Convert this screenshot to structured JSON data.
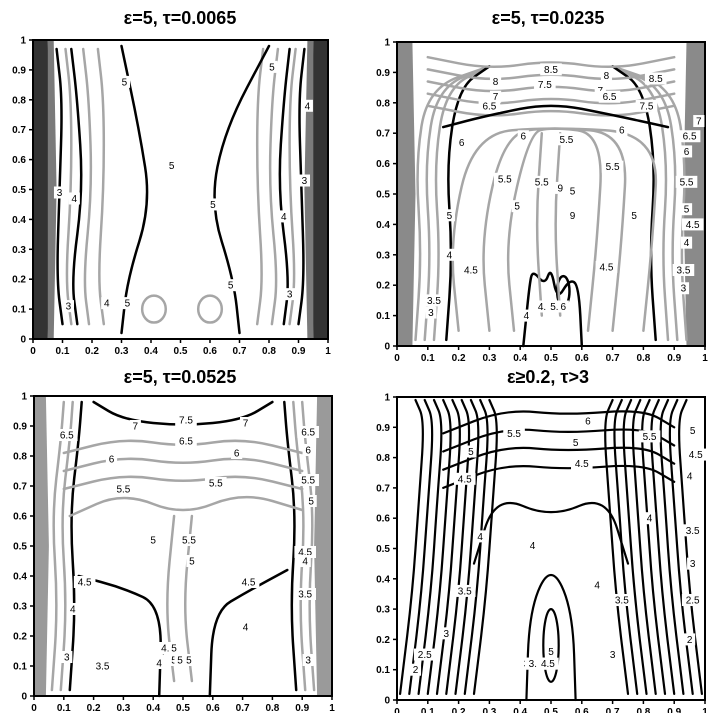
{
  "chart_data": [
    {
      "type": "contour",
      "title": "ε=5, τ=0.0065",
      "xlim": [
        0,
        1
      ],
      "ylim": [
        0,
        1
      ],
      "xticks": [
        "0",
        "0.1",
        "0.2",
        "0.3",
        "0.4",
        "0.5",
        "0.6",
        "0.7",
        "0.8",
        "0.9",
        "1"
      ],
      "yticks": [
        "0",
        "0.1",
        "0.2",
        "0.3",
        "0.4",
        "0.5",
        "0.6",
        "0.7",
        "0.8",
        "0.9",
        "1"
      ],
      "contour_labels": [
        {
          "text": "3",
          "x": 0.09,
          "y": 0.49
        },
        {
          "text": "4",
          "x": 0.14,
          "y": 0.47
        },
        {
          "text": "3",
          "x": 0.12,
          "y": 0.11
        },
        {
          "text": "4",
          "x": 0.25,
          "y": 0.12
        },
        {
          "text": "5",
          "x": 0.32,
          "y": 0.12
        },
        {
          "text": "5",
          "x": 0.31,
          "y": 0.86
        },
        {
          "text": "5",
          "x": 0.47,
          "y": 0.58
        },
        {
          "text": "5",
          "x": 0.61,
          "y": 0.45
        },
        {
          "text": "5",
          "x": 0.67,
          "y": 0.18
        },
        {
          "text": "5",
          "x": 0.81,
          "y": 0.91
        },
        {
          "text": "4",
          "x": 0.85,
          "y": 0.41
        },
        {
          "text": "3",
          "x": 0.87,
          "y": 0.15
        },
        {
          "text": "3",
          "x": 0.92,
          "y": 0.53
        },
        {
          "text": "4",
          "x": 0.93,
          "y": 0.78
        }
      ]
    },
    {
      "type": "contour",
      "title": "ε=5, τ=0.0235",
      "xlim": [
        0,
        1
      ],
      "ylim": [
        0,
        1
      ],
      "xticks": [
        "0",
        "0.1",
        "0.2",
        "0.3",
        "0.4",
        "0.5",
        "0.6",
        "0.7",
        "0.8",
        "0.9",
        "1"
      ],
      "yticks": [
        "0",
        "0.1",
        "0.2",
        "0.3",
        "0.4",
        "0.5",
        "0.6",
        "0.7",
        "0.8",
        "0.9",
        "1"
      ],
      "contour_labels": [
        {
          "text": "8.5",
          "x": 0.5,
          "y": 0.91
        },
        {
          "text": "8",
          "x": 0.32,
          "y": 0.87
        },
        {
          "text": "7.5",
          "x": 0.48,
          "y": 0.86
        },
        {
          "text": "8",
          "x": 0.68,
          "y": 0.89
        },
        {
          "text": "8.5",
          "x": 0.84,
          "y": 0.88
        },
        {
          "text": "7",
          "x": 0.32,
          "y": 0.82
        },
        {
          "text": "7",
          "x": 0.66,
          "y": 0.84
        },
        {
          "text": "6.5",
          "x": 0.3,
          "y": 0.79
        },
        {
          "text": "6.5",
          "x": 0.69,
          "y": 0.82
        },
        {
          "text": "7.5",
          "x": 0.81,
          "y": 0.79
        },
        {
          "text": "6",
          "x": 0.21,
          "y": 0.67
        },
        {
          "text": "6",
          "x": 0.41,
          "y": 0.69
        },
        {
          "text": "5.5",
          "x": 0.55,
          "y": 0.68
        },
        {
          "text": "6",
          "x": 0.73,
          "y": 0.71
        },
        {
          "text": "7",
          "x": 0.98,
          "y": 0.74
        },
        {
          "text": "6.5",
          "x": 0.95,
          "y": 0.69
        },
        {
          "text": "6",
          "x": 0.94,
          "y": 0.64
        },
        {
          "text": "5.5",
          "x": 0.94,
          "y": 0.54
        },
        {
          "text": "5.5",
          "x": 0.7,
          "y": 0.59
        },
        {
          "text": "5.5",
          "x": 0.35,
          "y": 0.55
        },
        {
          "text": "5.5",
          "x": 0.47,
          "y": 0.54
        },
        {
          "text": "9",
          "x": 0.53,
          "y": 0.52
        },
        {
          "text": "5",
          "x": 0.57,
          "y": 0.51
        },
        {
          "text": "5",
          "x": 0.39,
          "y": 0.46
        },
        {
          "text": "5",
          "x": 0.17,
          "y": 0.43
        },
        {
          "text": "9",
          "x": 0.57,
          "y": 0.43
        },
        {
          "text": "5",
          "x": 0.77,
          "y": 0.43
        },
        {
          "text": "5",
          "x": 0.94,
          "y": 0.45
        },
        {
          "text": "4.5",
          "x": 0.96,
          "y": 0.4
        },
        {
          "text": "4",
          "x": 0.94,
          "y": 0.34
        },
        {
          "text": "3.5",
          "x": 0.93,
          "y": 0.25
        },
        {
          "text": "3",
          "x": 0.93,
          "y": 0.19
        },
        {
          "text": "4.5",
          "x": 0.68,
          "y": 0.26
        },
        {
          "text": "4",
          "x": 0.17,
          "y": 0.3
        },
        {
          "text": "4.5",
          "x": 0.24,
          "y": 0.25
        },
        {
          "text": "3.5",
          "x": 0.12,
          "y": 0.15
        },
        {
          "text": "3",
          "x": 0.11,
          "y": 0.11
        },
        {
          "text": "4",
          "x": 0.42,
          "y": 0.1
        },
        {
          "text": "4.5",
          "x": 0.48,
          "y": 0.13
        },
        {
          "text": "5",
          "x": 0.5,
          "y": 0.13
        },
        {
          "text": "5.5",
          "x": 0.52,
          "y": 0.13
        },
        {
          "text": "6",
          "x": 0.54,
          "y": 0.13
        }
      ]
    },
    {
      "type": "contour",
      "title": "ε=5, τ=0.0525",
      "xlim": [
        0,
        1
      ],
      "ylim": [
        0,
        1
      ],
      "xticks": [
        "0",
        "0.1",
        "0.2",
        "0.3",
        "0.4",
        "0.5",
        "0.6",
        "0.7",
        "0.8",
        "0.9",
        "1"
      ],
      "yticks": [
        "0",
        "0.1",
        "0.2",
        "0.3",
        "0.4",
        "0.5",
        "0.6",
        "0.7",
        "0.8",
        "0.9",
        "1"
      ],
      "contour_labels": [
        {
          "text": "7.5",
          "x": 0.51,
          "y": 0.92
        },
        {
          "text": "7",
          "x": 0.34,
          "y": 0.9
        },
        {
          "text": "7",
          "x": 0.71,
          "y": 0.91
        },
        {
          "text": "6.5",
          "x": 0.11,
          "y": 0.87
        },
        {
          "text": "6.5",
          "x": 0.51,
          "y": 0.85
        },
        {
          "text": "6.5",
          "x": 0.92,
          "y": 0.88
        },
        {
          "text": "6",
          "x": 0.26,
          "y": 0.79
        },
        {
          "text": "6",
          "x": 0.68,
          "y": 0.81
        },
        {
          "text": "6",
          "x": 0.92,
          "y": 0.82
        },
        {
          "text": "5.5",
          "x": 0.3,
          "y": 0.69
        },
        {
          "text": "5.5",
          "x": 0.61,
          "y": 0.71
        },
        {
          "text": "5.5",
          "x": 0.92,
          "y": 0.72
        },
        {
          "text": "5",
          "x": 0.93,
          "y": 0.65
        },
        {
          "text": "5",
          "x": 0.4,
          "y": 0.52
        },
        {
          "text": "5.5",
          "x": 0.52,
          "y": 0.52
        },
        {
          "text": "5",
          "x": 0.53,
          "y": 0.45
        },
        {
          "text": "4.5",
          "x": 0.17,
          "y": 0.38
        },
        {
          "text": "4",
          "x": 0.13,
          "y": 0.29
        },
        {
          "text": "4.5",
          "x": 0.72,
          "y": 0.38
        },
        {
          "text": "4.5",
          "x": 0.91,
          "y": 0.48
        },
        {
          "text": "4",
          "x": 0.91,
          "y": 0.45
        },
        {
          "text": "4",
          "x": 0.71,
          "y": 0.23
        },
        {
          "text": "3.5",
          "x": 0.91,
          "y": 0.34
        },
        {
          "text": "3.5",
          "x": 0.23,
          "y": 0.1
        },
        {
          "text": "3",
          "x": 0.11,
          "y": 0.13
        },
        {
          "text": "3",
          "x": 0.92,
          "y": 0.12
        },
        {
          "text": "4",
          "x": 0.43,
          "y": 0.15
        },
        {
          "text": "4",
          "x": 0.42,
          "y": 0.11
        },
        {
          "text": "4.5",
          "x": 0.45,
          "y": 0.16
        },
        {
          "text": "5",
          "x": 0.47,
          "y": 0.16
        },
        {
          "text": "5",
          "x": 0.47,
          "y": 0.12
        },
        {
          "text": "5",
          "x": 0.49,
          "y": 0.12
        },
        {
          "text": "5",
          "x": 0.52,
          "y": 0.12
        }
      ]
    },
    {
      "type": "contour",
      "title": "ε≥0.2, τ>3",
      "xlim": [
        0,
        1
      ],
      "ylim": [
        0,
        1
      ],
      "xticks": [
        "0",
        "0.1",
        "0.2",
        "0.3",
        "0.4",
        "0.5",
        "0.6",
        "0.7",
        "0.8",
        "0.9",
        "1"
      ],
      "yticks": [
        "0",
        "0.1",
        "0.2",
        "0.3",
        "0.4",
        "0.5",
        "0.6",
        "0.7",
        "0.8",
        "0.9",
        "1"
      ],
      "contour_labels": [
        {
          "text": "6",
          "x": 0.62,
          "y": 0.92
        },
        {
          "text": "5.5",
          "x": 0.38,
          "y": 0.88
        },
        {
          "text": "5.5",
          "x": 0.82,
          "y": 0.87
        },
        {
          "text": "5",
          "x": 0.58,
          "y": 0.85
        },
        {
          "text": "5",
          "x": 0.24,
          "y": 0.82
        },
        {
          "text": "4.5",
          "x": 0.6,
          "y": 0.78
        },
        {
          "text": "4.5",
          "x": 0.22,
          "y": 0.73
        },
        {
          "text": "5",
          "x": 0.96,
          "y": 0.89
        },
        {
          "text": "4.5",
          "x": 0.97,
          "y": 0.81
        },
        {
          "text": "4",
          "x": 0.95,
          "y": 0.74
        },
        {
          "text": "4",
          "x": 0.82,
          "y": 0.6
        },
        {
          "text": "4",
          "x": 0.27,
          "y": 0.54
        },
        {
          "text": "4",
          "x": 0.44,
          "y": 0.51
        },
        {
          "text": "4",
          "x": 0.65,
          "y": 0.38
        },
        {
          "text": "3.5",
          "x": 0.96,
          "y": 0.56
        },
        {
          "text": "3",
          "x": 0.96,
          "y": 0.45
        },
        {
          "text": "2.5",
          "x": 0.96,
          "y": 0.33
        },
        {
          "text": "2",
          "x": 0.95,
          "y": 0.2
        },
        {
          "text": "3.5",
          "x": 0.22,
          "y": 0.36
        },
        {
          "text": "3",
          "x": 0.16,
          "y": 0.22
        },
        {
          "text": "2.5",
          "x": 0.09,
          "y": 0.15
        },
        {
          "text": "2",
          "x": 0.06,
          "y": 0.1
        },
        {
          "text": "3.5",
          "x": 0.73,
          "y": 0.33
        },
        {
          "text": "3",
          "x": 0.7,
          "y": 0.15
        },
        {
          "text": "3",
          "x": 0.42,
          "y": 0.12
        },
        {
          "text": "3.5",
          "x": 0.45,
          "y": 0.12
        },
        {
          "text": "4",
          "x": 0.47,
          "y": 0.12
        },
        {
          "text": "4.5",
          "x": 0.49,
          "y": 0.12
        },
        {
          "text": "5",
          "x": 0.5,
          "y": 0.16
        }
      ]
    }
  ]
}
